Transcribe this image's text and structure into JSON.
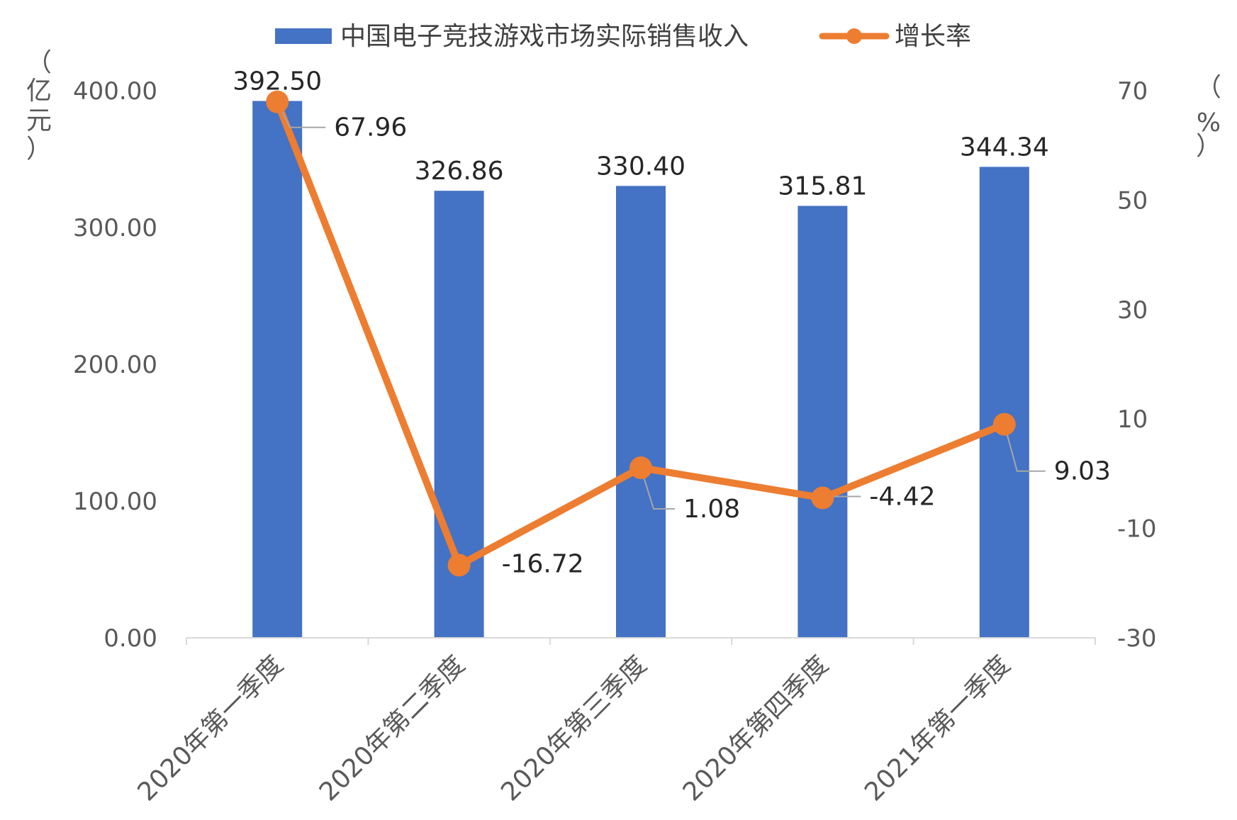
{
  "chart_data": {
    "type": "bar",
    "categories": [
      "2020年第一季度",
      "2020年第二季度",
      "2020年第三季度",
      "2020年第四季度",
      "2021年第一季度"
    ],
    "series": [
      {
        "name": "中国电子竞技游戏市场实际销售收入",
        "type": "bar",
        "axis": "left",
        "values": [
          392.5,
          326.86,
          330.4,
          315.81,
          344.34
        ],
        "labels": [
          "392.50",
          "326.86",
          "330.40",
          "315.81",
          "344.34"
        ],
        "color": "#4472C4"
      },
      {
        "name": "增长率",
        "type": "line",
        "axis": "right",
        "values": [
          67.96,
          -16.72,
          1.08,
          -4.42,
          9.03
        ],
        "labels": [
          "67.96",
          "-16.72",
          "1.08",
          "-4.42",
          "9.03"
        ],
        "color": "#ED7D31"
      }
    ],
    "y_left": {
      "label_lines": [
        "（",
        "亿",
        "元",
        "）"
      ],
      "ylim": [
        0,
        400
      ],
      "ticks": [
        "0.00",
        "100.00",
        "200.00",
        "300.00",
        "400.00"
      ]
    },
    "y_right": {
      "label_lines": [
        "（",
        "%",
        "）"
      ],
      "ylim": [
        -30,
        70
      ],
      "ticks": [
        "-30",
        "-10",
        "10",
        "30",
        "50",
        "70"
      ]
    },
    "legend_position": "top",
    "grid": false
  }
}
